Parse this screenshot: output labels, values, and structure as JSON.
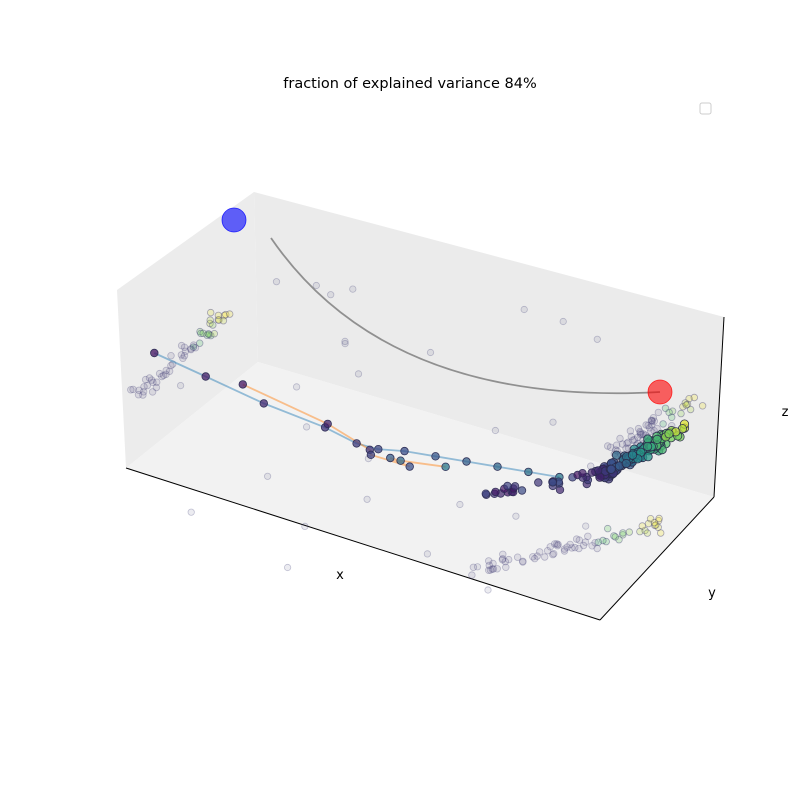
{
  "chart_data": {
    "type": "scatter",
    "title": "fraction of explained variance 84%",
    "xlabel": "x",
    "ylabel": "y",
    "zlabel": "z",
    "projection": "3d",
    "grid": false,
    "legend": {
      "placement": "top-right",
      "entries": []
    },
    "colormap": "viridis",
    "colors": {
      "trajectory_1": "#1f77b4",
      "trajectory_2": "#ff7f0e",
      "connector_line": "#808080",
      "start_marker": "#0000ff",
      "end_marker": "#ff0000",
      "pane_light": "#f2f2f2",
      "pane_mid": "#ebebeb"
    },
    "start_point": {
      "x": 0.0,
      "y": 0.0,
      "z": 1.0
    },
    "end_point": {
      "x": 1.0,
      "y": 0.0,
      "z": 0.3
    },
    "series": [
      {
        "points": [
          [
            0.02,
            0.18,
            0.55
          ],
          [
            0.11,
            0.24,
            0.46
          ],
          [
            0.22,
            0.28,
            0.38
          ],
          [
            0.34,
            0.31,
            0.33
          ],
          [
            0.4,
            0.33,
            0.28
          ],
          [
            0.44,
            0.35,
            0.27
          ],
          [
            0.49,
            0.37,
            0.29
          ],
          [
            0.55,
            0.39,
            0.3
          ],
          [
            0.61,
            0.41,
            0.31
          ],
          [
            0.67,
            0.43,
            0.32
          ],
          [
            0.73,
            0.45,
            0.33
          ],
          [
            0.79,
            0.47,
            0.34
          ]
        ]
      },
      {
        "points": [
          [
            0.23,
            0.1,
            0.6
          ],
          [
            0.39,
            0.16,
            0.48
          ],
          [
            0.46,
            0.22,
            0.36
          ],
          [
            0.45,
            0.26,
            0.3
          ],
          [
            0.52,
            0.3,
            0.27
          ],
          [
            0.45,
            0.4,
            0.2
          ],
          [
            0.46,
            0.44,
            0.17
          ],
          [
            0.55,
            0.46,
            0.2
          ]
        ]
      }
    ]
  }
}
